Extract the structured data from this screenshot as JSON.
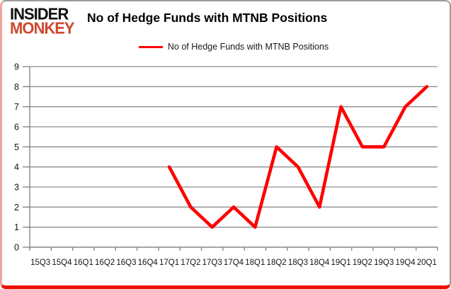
{
  "colors": {
    "line": "#FF0000",
    "logo_black": "#111111",
    "logo_red": "#D0472E",
    "grid": "#8C8C8C",
    "axis": "#808080",
    "bottom_border_red": "#EE1100",
    "text": "#000000"
  },
  "header": {
    "logo": {
      "line1": "INSIDER",
      "line2": "MONKEY"
    },
    "title": "No of Hedge Funds with MTNB Positions"
  },
  "legend": {
    "label": "No of Hedge Funds with MTNB Positions"
  },
  "chart_data": {
    "type": "line",
    "title": "No of Hedge Funds with MTNB Positions",
    "xlabel": "",
    "ylabel": "",
    "categories": [
      "15Q3",
      "15Q4",
      "16Q1",
      "16Q2",
      "16Q3",
      "16Q4",
      "17Q1",
      "17Q2",
      "17Q3",
      "17Q4",
      "18Q1",
      "18Q2",
      "18Q3",
      "18Q4",
      "19Q1",
      "19Q2",
      "19Q3",
      "19Q4",
      "20Q1"
    ],
    "series": [
      {
        "name": "No of Hedge Funds with MTNB Positions",
        "color": "#FF0000",
        "values": [
          null,
          null,
          null,
          null,
          null,
          null,
          4,
          2,
          1,
          2,
          1,
          5,
          4,
          2,
          7,
          5,
          5,
          7,
          8
        ]
      }
    ],
    "ylim": [
      0,
      9
    ],
    "ytick_interval": 1,
    "grid": true,
    "legend_position": "top-center"
  }
}
